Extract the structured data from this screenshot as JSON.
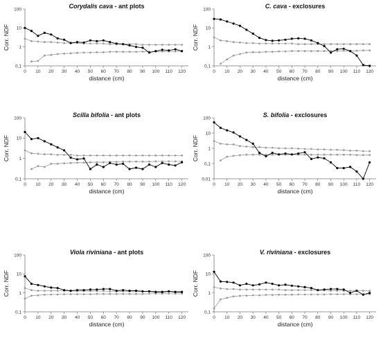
{
  "chart_data": [
    {
      "type": "line",
      "scale_y": "log",
      "title": {
        "species": "Corydalis cava",
        "suffix": " - ant plots"
      },
      "xlabel": "distance (cm)",
      "ylabel": "Corr. NDF",
      "xlim": [
        0,
        125
      ],
      "xticks": [
        0,
        10,
        20,
        30,
        40,
        50,
        60,
        70,
        80,
        90,
        100,
        110,
        120
      ],
      "ylim": [
        0.1,
        100
      ],
      "yticks": [
        0.1,
        1,
        10,
        100
      ],
      "ytick_labels": [
        "0,1",
        "1",
        "10",
        "100"
      ],
      "x": [
        0,
        5,
        10,
        15,
        20,
        25,
        30,
        35,
        40,
        45,
        50,
        55,
        60,
        65,
        70,
        75,
        80,
        85,
        90,
        95,
        100,
        105,
        110,
        115,
        120
      ],
      "series": [
        {
          "role": "observed",
          "color": "#000000",
          "values": [
            10,
            7,
            3.8,
            5.5,
            4.5,
            2.8,
            2.4,
            1.6,
            1.8,
            1.7,
            2.2,
            2,
            2.2,
            1.8,
            1.5,
            1.4,
            1.2,
            1,
            0.9,
            0.5,
            0.6,
            0.7,
            0.65,
            0.75,
            0.6
          ]
        },
        {
          "role": "upper",
          "color": "#999999",
          "values": [
            2.7,
            2,
            1.9,
            1.8,
            1.8,
            1.7,
            1.6,
            1.6,
            1.6,
            1.5,
            1.5,
            1.5,
            1.5,
            1.4,
            1.4,
            1.4,
            1.4,
            1.4,
            1.3,
            1.3,
            1.3,
            1.3,
            1.3,
            1.3,
            1.3
          ]
        },
        {
          "role": "lower",
          "color": "#999999",
          "values": [
            null,
            0.17,
            0.18,
            0.35,
            0.38,
            0.42,
            0.44,
            0.46,
            0.48,
            0.5,
            0.5,
            0.52,
            0.52,
            0.55,
            0.55,
            0.55,
            0.55,
            0.55,
            0.56,
            0.56,
            0.56,
            0.57,
            0.57,
            0.58,
            0.58
          ]
        }
      ]
    },
    {
      "type": "line",
      "scale_y": "log",
      "title": {
        "species": "C. cava",
        "suffix": " - exclosures"
      },
      "xlabel": "distance (cm)",
      "ylabel": "Corr. NDF",
      "xlim": [
        0,
        125
      ],
      "xticks": [
        0,
        10,
        20,
        30,
        40,
        50,
        60,
        70,
        80,
        90,
        100,
        110,
        120
      ],
      "ylim": [
        0.1,
        100
      ],
      "yticks": [
        0.1,
        1,
        10,
        100
      ],
      "ytick_labels": [
        "0,1",
        "1",
        "10",
        "100"
      ],
      "x": [
        0,
        5,
        10,
        15,
        20,
        25,
        30,
        35,
        40,
        45,
        50,
        55,
        60,
        65,
        70,
        75,
        80,
        85,
        90,
        95,
        100,
        105,
        110,
        115,
        120
      ],
      "series": [
        {
          "role": "observed",
          "color": "#000000",
          "values": [
            30,
            28,
            22,
            17,
            13,
            8,
            5,
            3,
            2.3,
            2.1,
            2.2,
            2.4,
            2.7,
            2.8,
            2.7,
            2.2,
            1.6,
            1.1,
            0.5,
            0.75,
            0.8,
            0.6,
            0.35,
            0.11,
            0.1
          ]
        },
        {
          "role": "upper",
          "color": "#999999",
          "values": [
            3.2,
            2.2,
            2,
            1.8,
            1.7,
            1.6,
            1.6,
            1.5,
            1.5,
            1.5,
            1.5,
            1.5,
            1.5,
            1.4,
            1.4,
            1.4,
            1.4,
            1.4,
            1.4,
            1.4,
            1.4,
            1.4,
            1.4,
            1.4,
            1.4
          ]
        },
        {
          "role": "lower",
          "color": "#999999",
          "values": [
            null,
            0.13,
            0.22,
            0.35,
            0.42,
            0.5,
            0.53,
            0.52,
            0.55,
            0.55,
            0.58,
            0.58,
            0.6,
            0.6,
            0.6,
            0.6,
            0.6,
            0.6,
            0.6,
            0.6,
            0.62,
            0.6,
            0.62,
            0.65,
            0.65
          ]
        }
      ]
    },
    {
      "type": "line",
      "scale_y": "log",
      "title": {
        "species": "Scilla bifolia",
        "suffix": " - ant plots"
      },
      "xlabel": "distance (cm)",
      "ylabel": "Corr. NDF",
      "xlim": [
        0,
        125
      ],
      "xticks": [
        0,
        10,
        20,
        30,
        40,
        50,
        60,
        70,
        80,
        90,
        100,
        110,
        120
      ],
      "ylim": [
        0.1,
        100
      ],
      "yticks": [
        0.1,
        1,
        10,
        100
      ],
      "ytick_labels": [
        "0,1",
        "1",
        "10",
        "100"
      ],
      "x": [
        0,
        5,
        10,
        15,
        20,
        25,
        30,
        35,
        40,
        45,
        50,
        55,
        60,
        65,
        70,
        75,
        80,
        85,
        90,
        95,
        100,
        105,
        110,
        115,
        120
      ],
      "series": [
        {
          "role": "observed",
          "color": "#000000",
          "values": [
            20,
            9,
            10,
            7,
            5,
            3.5,
            2.5,
            1.1,
            0.9,
            1,
            0.3,
            0.5,
            0.38,
            0.6,
            0.5,
            0.55,
            0.3,
            0.35,
            0.3,
            0.5,
            0.38,
            0.6,
            0.5,
            0.45,
            0.65
          ]
        },
        {
          "role": "upper",
          "color": "#999999",
          "values": [
            2.5,
            1.8,
            1.7,
            1.6,
            1.6,
            1.5,
            1.5,
            1.5,
            1.4,
            1.4,
            1.4,
            1.4,
            1.4,
            1.4,
            1.4,
            1.4,
            1.4,
            1.4,
            1.4,
            1.4,
            1.4,
            1.4,
            1.4,
            1.4,
            1.4
          ]
        },
        {
          "role": "lower",
          "color": "#999999",
          "values": [
            null,
            0.3,
            0.42,
            0.38,
            0.55,
            0.55,
            0.58,
            0.6,
            0.62,
            0.62,
            0.65,
            0.65,
            0.65,
            0.68,
            0.68,
            0.7,
            0.7,
            0.7,
            0.7,
            0.7,
            0.72,
            0.72,
            0.72,
            0.72,
            0.72
          ]
        }
      ]
    },
    {
      "type": "line",
      "scale_y": "log",
      "title": {
        "species": "S. bifolia",
        "suffix": " - exclosures"
      },
      "xlabel": "distance (cm)",
      "ylabel": "Corr. NDF",
      "xlim": [
        0,
        125
      ],
      "xticks": [
        0,
        10,
        20,
        30,
        40,
        50,
        60,
        70,
        80,
        90,
        100,
        110,
        120
      ],
      "ylim": [
        0.01,
        100
      ],
      "yticks": [
        0.01,
        0.1,
        1,
        10,
        100
      ],
      "ytick_labels": [
        "0,01",
        "0,1",
        "1",
        "10",
        "100"
      ],
      "x": [
        0,
        5,
        10,
        15,
        20,
        25,
        30,
        35,
        40,
        45,
        50,
        55,
        60,
        65,
        70,
        75,
        80,
        85,
        90,
        95,
        100,
        105,
        110,
        115,
        120
      ],
      "series": [
        {
          "role": "observed",
          "color": "#000000",
          "values": [
            50,
            22,
            15,
            11,
            6,
            3.5,
            2,
            0.5,
            0.3,
            0.5,
            0.4,
            0.45,
            0.4,
            0.45,
            0.55,
            0.2,
            0.25,
            0.22,
            0.12,
            0.05,
            0.05,
            0.06,
            0.03,
            0.01,
            0.12
          ]
        },
        {
          "role": "upper",
          "color": "#999999",
          "values": [
            3,
            2,
            1.8,
            1.8,
            1.4,
            1.3,
            1.2,
            1.2,
            1.1,
            1.1,
            1,
            1,
            1,
            0.95,
            0.9,
            0.9,
            0.85,
            0.85,
            0.8,
            0.8,
            0.75,
            0.7,
            0.7,
            0.65,
            0.65
          ]
        },
        {
          "role": "lower",
          "color": "#999999",
          "values": [
            null,
            0.16,
            0.28,
            0.32,
            0.35,
            0.38,
            0.38,
            0.38,
            0.38,
            0.38,
            0.38,
            0.38,
            0.38,
            0.38,
            0.38,
            0.38,
            0.38,
            0.38,
            0.38,
            0.38,
            0.38,
            0.38,
            0.36,
            0.36,
            0.36
          ]
        }
      ]
    },
    {
      "type": "line",
      "scale_y": "log",
      "title": {
        "species": "Viola riviniana",
        "suffix": " - ant plots"
      },
      "xlabel": "distance (cm)",
      "ylabel": "Corr. NDF",
      "xlim": [
        0,
        125
      ],
      "xticks": [
        0,
        10,
        20,
        30,
        40,
        50,
        60,
        70,
        80,
        90,
        100,
        110,
        120
      ],
      "ylim": [
        0.1,
        100
      ],
      "yticks": [
        0.1,
        1,
        10,
        100
      ],
      "ytick_labels": [
        "0,1",
        "1",
        "10",
        "100"
      ],
      "x": [
        0,
        5,
        10,
        15,
        20,
        25,
        30,
        35,
        40,
        45,
        50,
        55,
        60,
        65,
        70,
        75,
        80,
        85,
        90,
        95,
        100,
        105,
        110,
        115,
        120
      ],
      "series": [
        {
          "role": "observed",
          "color": "#000000",
          "values": [
            7.5,
            3,
            2.6,
            2.2,
            1.9,
            1.8,
            1.4,
            1.3,
            1.4,
            1.4,
            1.5,
            1.5,
            1.6,
            1.6,
            1.3,
            1.4,
            1.3,
            1.3,
            1.2,
            1.2,
            1.1,
            1.1,
            1.2,
            1.1,
            1.1
          ]
        },
        {
          "role": "upper",
          "color": "#999999",
          "values": [
            1.8,
            1.4,
            1.3,
            1.3,
            1.3,
            1.3,
            1.3,
            1.25,
            1.25,
            1.25,
            1.25,
            1.25,
            1.25,
            1.2,
            1.2,
            1.2,
            1.2,
            1.2,
            1.2,
            1.2,
            1.2,
            1.2,
            1.2,
            1.2,
            1.2
          ]
        },
        {
          "role": "lower",
          "color": "#999999",
          "values": [
            0.5,
            0.7,
            0.75,
            0.8,
            0.82,
            0.82,
            0.85,
            0.85,
            0.85,
            0.85,
            0.85,
            0.88,
            0.88,
            0.88,
            0.88,
            0.88,
            0.88,
            0.88,
            0.88,
            0.9,
            0.9,
            0.9,
            0.9,
            0.9,
            0.9
          ]
        }
      ]
    },
    {
      "type": "line",
      "scale_y": "log",
      "title": {
        "species": "V. riviniana",
        "suffix": " - exclosures"
      },
      "xlabel": "distance (cm)",
      "ylabel": "Corr. NDF",
      "xlim": [
        0,
        125
      ],
      "xticks": [
        0,
        10,
        20,
        30,
        40,
        50,
        60,
        70,
        80,
        90,
        100,
        110,
        120
      ],
      "ylim": [
        0.1,
        100
      ],
      "yticks": [
        0.1,
        1,
        10,
        100
      ],
      "ytick_labels": [
        "0,1",
        "1",
        "10",
        "100"
      ],
      "x": [
        0,
        5,
        10,
        15,
        20,
        25,
        30,
        35,
        40,
        45,
        50,
        55,
        60,
        65,
        70,
        75,
        80,
        85,
        90,
        95,
        100,
        105,
        110,
        115,
        120
      ],
      "series": [
        {
          "role": "observed",
          "color": "#000000",
          "values": [
            13,
            4,
            3.8,
            3.5,
            2.5,
            3,
            2.5,
            2.8,
            3.5,
            3,
            2.5,
            2.7,
            2.4,
            2.2,
            2,
            1.8,
            1.4,
            1.5,
            1.6,
            1.6,
            1.5,
            1,
            1.3,
            0.8,
            1
          ]
        },
        {
          "role": "upper",
          "color": "#999999",
          "values": [
            2,
            1.7,
            1.6,
            1.6,
            1.5,
            1.5,
            1.5,
            1.5,
            1.5,
            1.5,
            1.5,
            1.4,
            1.4,
            1.4,
            1.4,
            1.4,
            1.4,
            1.4,
            1.3,
            1.3,
            1.3,
            1.3,
            1.3,
            1.3,
            1.3
          ]
        },
        {
          "role": "lower",
          "color": "#999999",
          "values": [
            0.15,
            0.45,
            0.55,
            0.65,
            0.7,
            0.72,
            0.75,
            0.75,
            0.78,
            0.78,
            0.8,
            0.8,
            0.8,
            0.82,
            0.82,
            0.82,
            0.82,
            0.82,
            0.85,
            0.85,
            0.85,
            0.85,
            0.85,
            0.85,
            0.85
          ]
        }
      ]
    }
  ]
}
